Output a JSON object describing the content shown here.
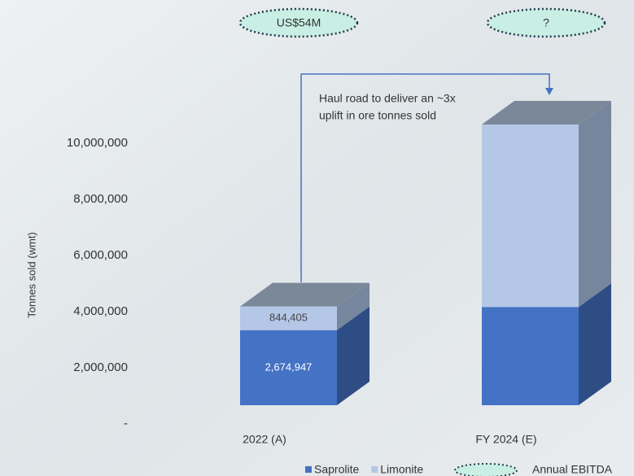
{
  "chart_data": {
    "type": "bar3d_stacked",
    "y_label": "Tonnes sold (wmt)",
    "categories": [
      "2022 (A)",
      "FY 2024 (E)"
    ],
    "series": [
      {
        "name": "Saprolite",
        "color": "#4472c4",
        "side_color": "#2f4d85",
        "values": [
          2674947,
          3500000
        ],
        "value_labels": [
          "2,674,947",
          null
        ]
      },
      {
        "name": "Limonite",
        "color": "#b4c7e7",
        "side_color": "#76869c",
        "values": [
          844405,
          6500000
        ],
        "value_labels": [
          "844,405",
          null
        ]
      }
    ],
    "ylim": [
      0,
      10000000
    ],
    "yticks": [
      {
        "value": 0,
        "label": "-"
      },
      {
        "value": 2000000,
        "label": "2,000,000"
      },
      {
        "value": 4000000,
        "label": "4,000,000"
      },
      {
        "value": 6000000,
        "label": "6,000,000"
      },
      {
        "value": 8000000,
        "label": "8,000,000"
      },
      {
        "value": 10000000,
        "label": "10,000,000"
      }
    ],
    "ebitda": {
      "name": "Annual EBITDA",
      "labels": [
        "US$54M",
        "?"
      ],
      "color": "#c9eee3"
    },
    "annotation_lines": [
      "Haul road to deliver an ~3x",
      "uplift in ore tonnes sold"
    ]
  }
}
